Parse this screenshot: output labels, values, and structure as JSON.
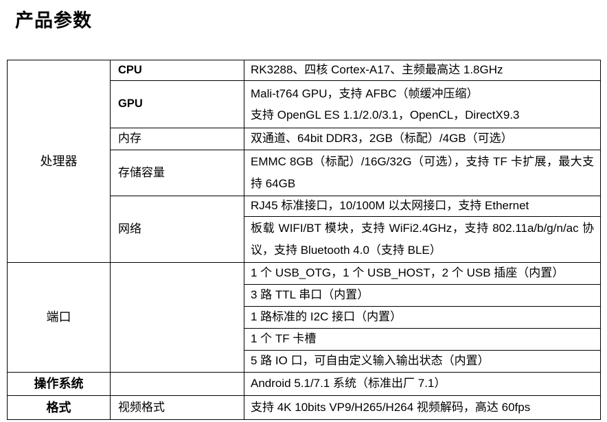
{
  "page": {
    "title": "产品参数"
  },
  "colors": {
    "text": "#000000",
    "border": "#000000",
    "background": "#ffffff"
  },
  "specs": {
    "processor": {
      "label": "处理器",
      "rows": {
        "cpu": {
          "name": "CPU",
          "value": "RK3288、四核 Cortex-A17、主频最高达 1.8GHz"
        },
        "gpu": {
          "name": "GPU",
          "line1": "Mali-t764 GPU，支持 AFBC（帧缓冲压缩）",
          "line2": "支持 OpenGL ES 1.1/2.0/3.1，OpenCL，DirectX9.3"
        },
        "memory": {
          "name": "内存",
          "value": "双通道、64bit DDR3，2GB（标配）/4GB（可选）"
        },
        "storage": {
          "name": "存储容量",
          "value": "EMMC 8GB（标配）/16G/32G（可选），支持 TF 卡扩展，最大支持 64GB"
        },
        "network": {
          "name": "网络",
          "line1": "RJ45 标准接口，10/100M 以太网接口，支持 Ethernet",
          "line2": "板载 WIFI/BT 模块，支持 WiFi2.4GHz，支持 802.11a/b/g/n/ac 协议，支持 Bluetooth 4.0（支持 BLE）"
        }
      }
    },
    "ports": {
      "label": "端口",
      "items": [
        "1 个 USB_OTG，1 个 USB_HOST，2 个 USB 插座（内置）",
        "3 路 TTL 串口（内置）",
        "1 路标准的 I2C 接口（内置）",
        "1 个 TF 卡槽",
        "5 路 IO 口，可自由定义输入输出状态（内置）"
      ]
    },
    "os": {
      "label": "操作系统",
      "value": "Android 5.1/7.1 系统（标准出厂 7.1）"
    },
    "format": {
      "label": "格式",
      "sub_label": "视频格式",
      "value": "支持 4K 10bits VP9/H265/H264 视频解码，高达 60fps"
    }
  }
}
